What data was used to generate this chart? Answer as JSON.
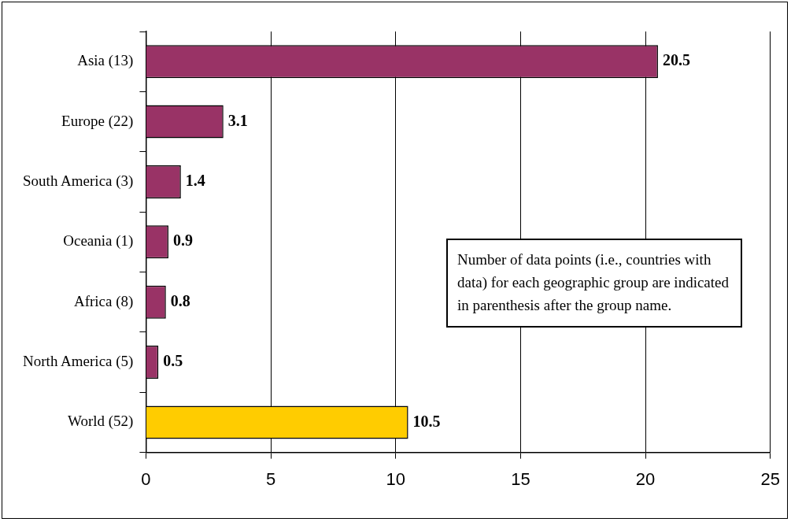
{
  "chart_data": {
    "type": "bar",
    "orientation": "horizontal",
    "categories": [
      "Asia (13)",
      "Europe (22)",
      "South America (3)",
      "Oceania (1)",
      "Africa (8)",
      "North America (5)",
      "World (52)"
    ],
    "values": [
      20.5,
      3.1,
      1.4,
      0.9,
      0.8,
      0.5,
      10.5
    ],
    "colors": [
      "#993366",
      "#993366",
      "#993366",
      "#993366",
      "#993366",
      "#993366",
      "#ffcc00"
    ],
    "xlim": [
      0,
      25
    ],
    "xticks": [
      0,
      5,
      10,
      15,
      20,
      25
    ],
    "grid": "x",
    "data_labels": true,
    "annotations": [
      "Number of data points (i.e., countries with data) for each geographic group are indicated in parenthesis after the group name."
    ]
  }
}
